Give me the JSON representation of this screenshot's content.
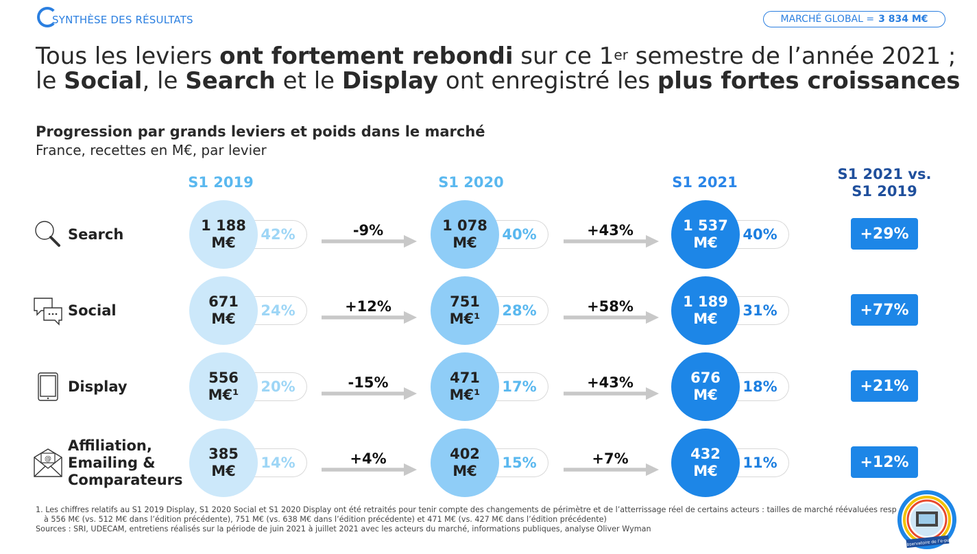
{
  "header": {
    "section_label": "SYNTHÈSE DES RÉSULTATS",
    "market_label": "MARCHÉ GLOBAL = ",
    "market_value": "3 834 M€"
  },
  "title": {
    "l1a": "Tous les leviers ",
    "l1b": "ont fortement rebondi",
    "l1c": " sur ce 1",
    "l1sup": "er",
    "l1d": " semestre de l’année 2021 ;",
    "l2a": "le ",
    "l2b": "Social",
    "l2c": ", le ",
    "l2d": "Search",
    "l2e": " et le ",
    "l2f": "Display",
    "l2g": " ont enregistré les ",
    "l2h": "plus fortes croissances"
  },
  "subtitle": "Progression par grands leviers et poids dans le marché",
  "subsubtitle": "France, recettes en M€, par levier",
  "chart_data": {
    "type": "table",
    "columns": [
      "S1 2019",
      "S1 2020",
      "S1 2021",
      "S1 2021 vs. S1 2019"
    ],
    "col4_line1": "S1 2021 vs.",
    "col4_line2": "S1 2019",
    "rows": [
      {
        "lever": "Search",
        "label_lines": [
          "Search"
        ],
        "icon": "magnifier-icon",
        "v2019": "1 188",
        "u2019": "M€",
        "p2019": "42%",
        "g1920": "-9%",
        "v2020": "1 078",
        "u2020": "M€",
        "p2020": "40%",
        "g2021": "+43%",
        "v2021": "1 537",
        "u2021": "M€",
        "p2021": "40%",
        "g1921": "+29%"
      },
      {
        "lever": "Social",
        "label_lines": [
          "Social"
        ],
        "icon": "chat-bubbles-icon",
        "v2019": "671",
        "u2019": "M€",
        "p2019": "24%",
        "g1920": "+12%",
        "v2020": "751",
        "u2020": "M€¹",
        "p2020": "28%",
        "g2021": "+58%",
        "v2021": "1 189",
        "u2021": "M€",
        "p2021": "31%",
        "g1921": "+77%"
      },
      {
        "lever": "Display",
        "label_lines": [
          "Display"
        ],
        "icon": "tablet-icon",
        "v2019": "556",
        "u2019": "M€¹",
        "p2019": "20%",
        "g1920": "-15%",
        "v2020": "471",
        "u2020": "M€¹",
        "p2020": "17%",
        "g2021": "+43%",
        "v2021": "676",
        "u2021": "M€",
        "p2021": "18%",
        "g1921": "+21%"
      },
      {
        "lever": "Affiliation, Emailing & Comparateurs",
        "label_lines": [
          "Affiliation,",
          "Emailing &",
          "Comparateurs"
        ],
        "icon": "envelope-icon",
        "v2019": "385",
        "u2019": "M€",
        "p2019": "14%",
        "g1920": "+4%",
        "v2020": "402",
        "u2020": "M€",
        "p2020": "15%",
        "g2021": "+7%",
        "v2021": "432",
        "u2021": "M€",
        "p2021": "11%",
        "g1921": "+12%"
      }
    ]
  },
  "footnotes": {
    "line1": "1. Les chiffres relatifs au S1 2019 Display, S1 2020 Social et S1 2020 Display ont été retraités pour tenir compte des changements de périmètre et de l’atterrissage réel de certains acteurs : tailles de marché réévaluées resp",
    "line2": "à 556 M€ (vs. 512 M€ dans l’édition précédente), 751 M€ (vs. 638 M€ dans l’édition précédente) et 471 M€ (vs. 427 M€ dans l’édition précédente)",
    "line3": "Sources : SRI, UDECAM, entretiens réalisés sur la période de juin 2021 à juillet 2021 avec les acteurs du marché, informations publiques, analyse Oliver Wyman"
  },
  "logo": {
    "caption": "Observatoire de l’e-pub"
  },
  "colors": {
    "accent": "#2b7fe0",
    "c2019": "#cce8fa",
    "c2020": "#8fcdf7",
    "c2021": "#1d86e7",
    "arrow": "#c8c8c8"
  }
}
